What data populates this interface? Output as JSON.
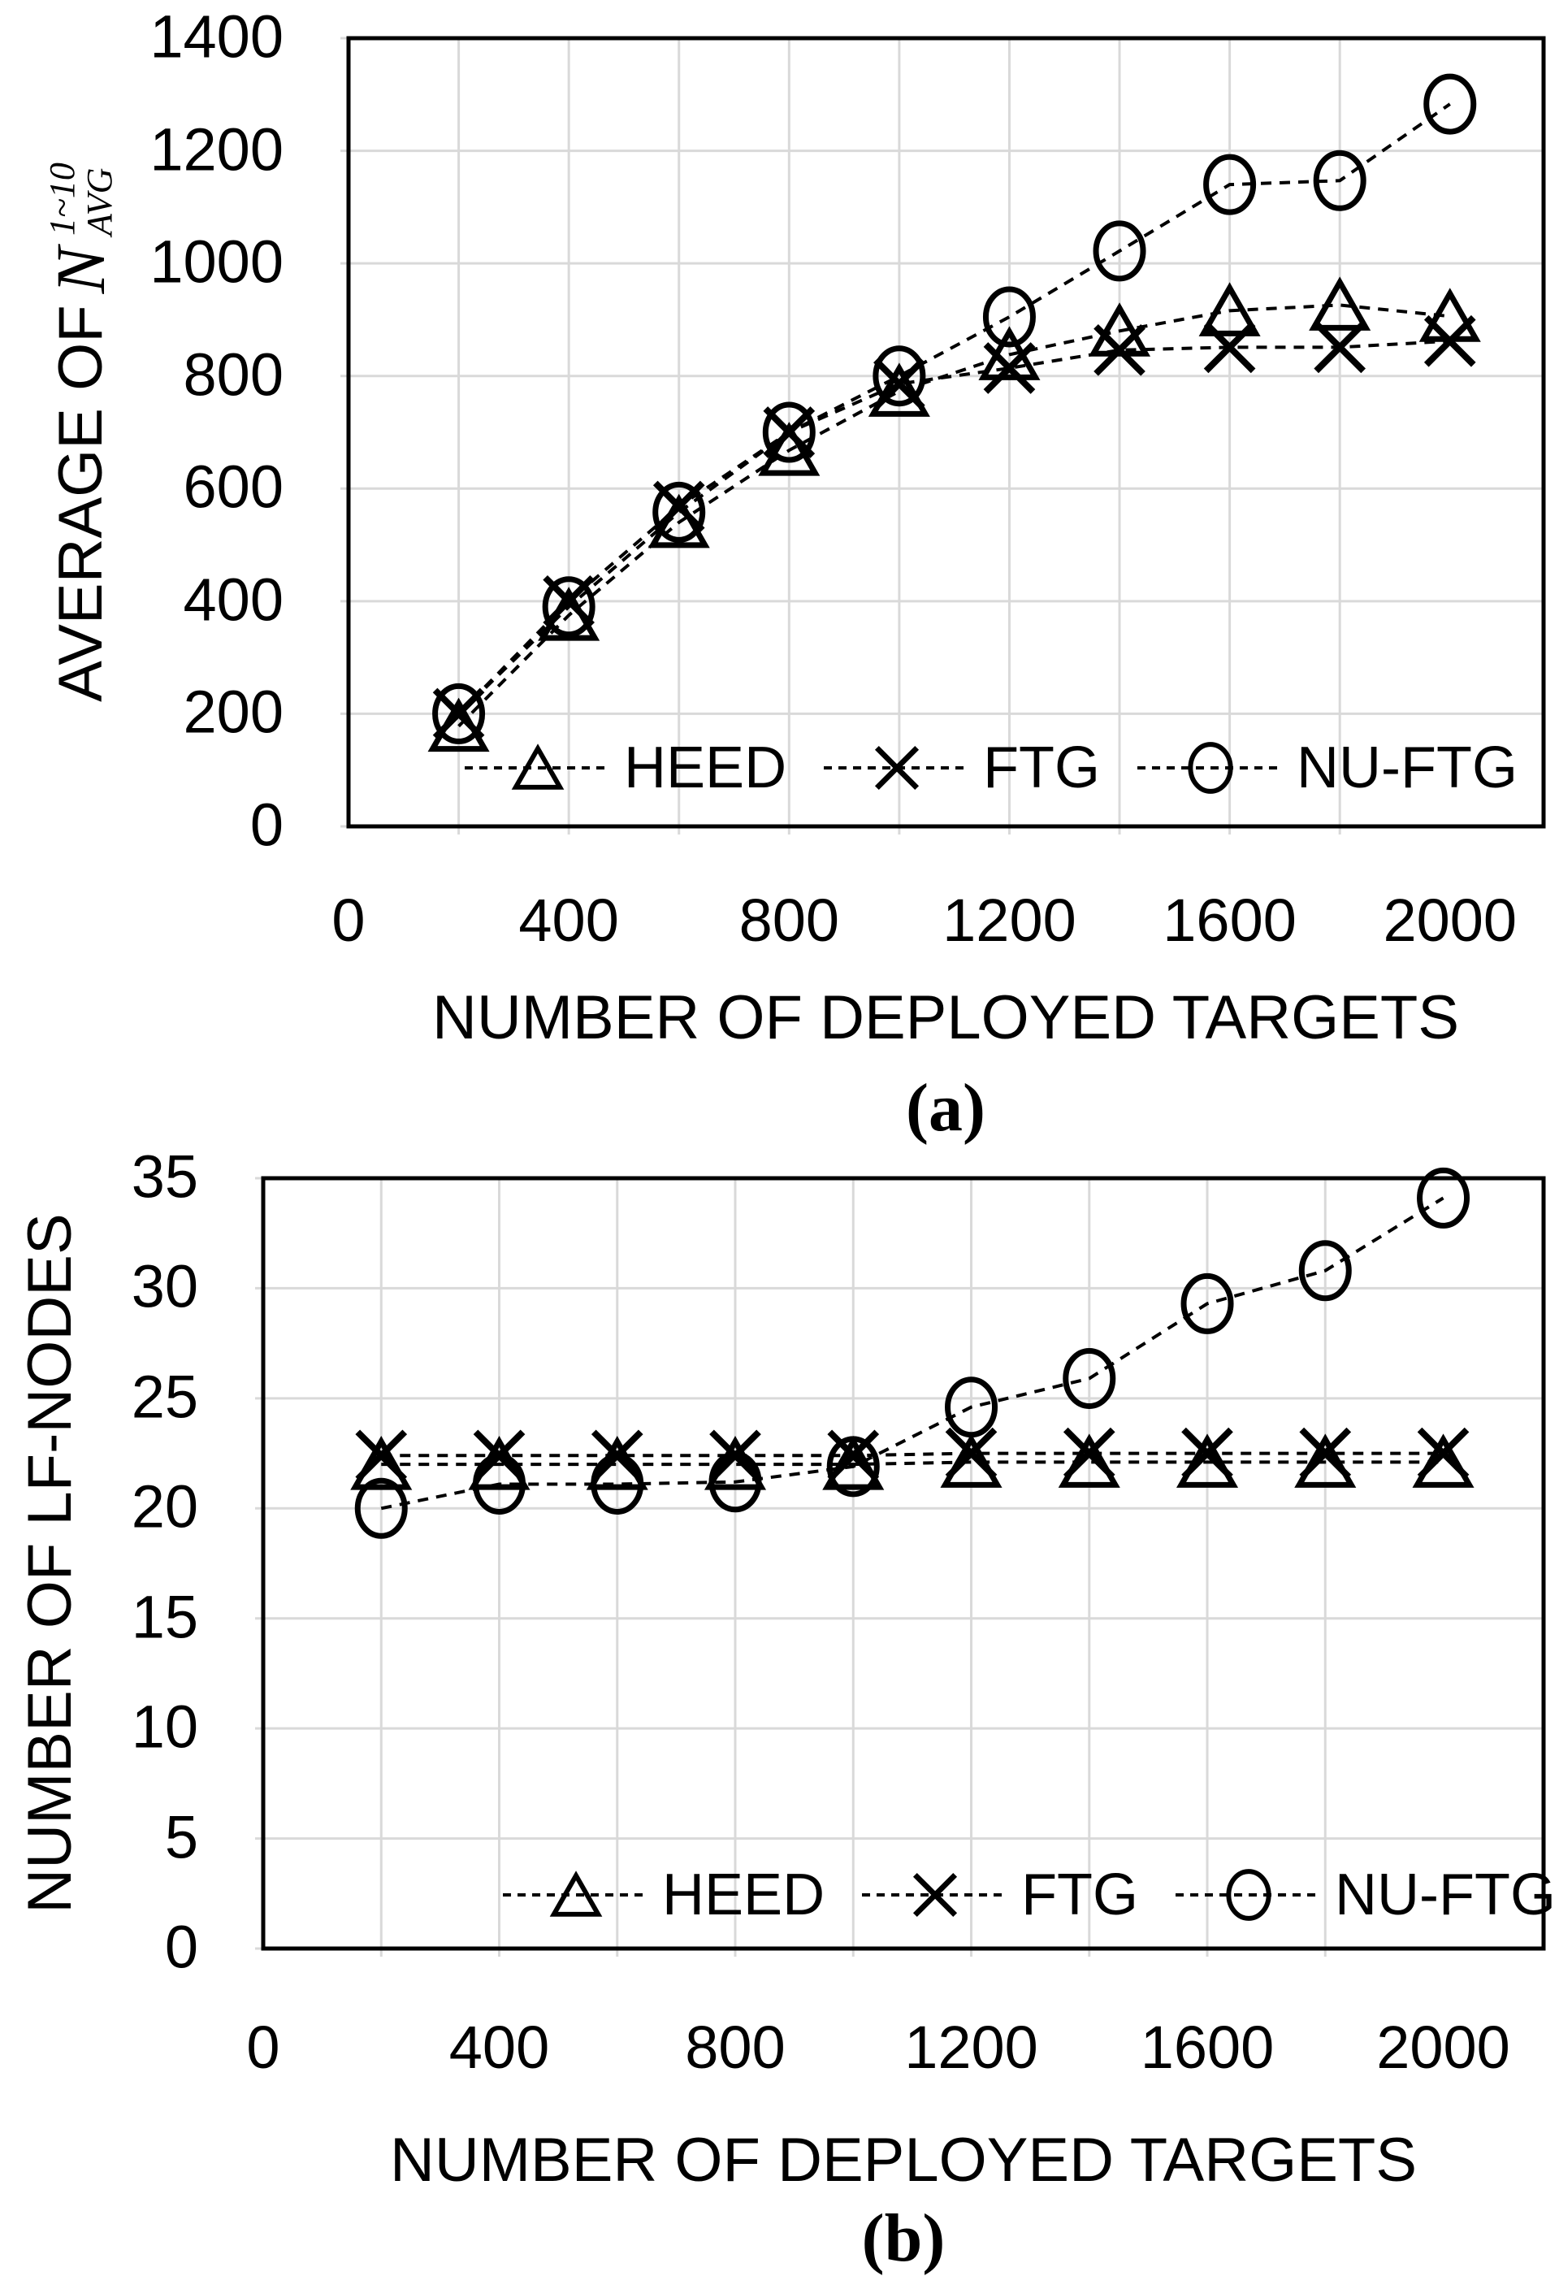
{
  "figure": {
    "background": "#ffffff"
  },
  "colors": {
    "series": "#000000",
    "grid": "#d9d9d9",
    "axis": "#000000",
    "text": "#000000"
  },
  "chart_data": [
    {
      "id": "a",
      "type": "line",
      "caption": "(a)",
      "xlabel": "NUMBER OF DEPLOYED TARGETS",
      "ylabel_prefix": "AVERAGE OF",
      "ylabel_math": {
        "base": "N",
        "sup": "1~10",
        "sub": "AVG"
      },
      "x": [
        200,
        400,
        600,
        800,
        1000,
        1200,
        1400,
        1600,
        1800,
        2000
      ],
      "xlim": [
        0,
        2170
      ],
      "xticks": [
        0,
        400,
        800,
        1200,
        1600,
        2000
      ],
      "x_gridstep": 200,
      "ylim": [
        0,
        1400
      ],
      "yticks": [
        0,
        200,
        400,
        600,
        800,
        1000,
        1200,
        1400
      ],
      "y_gridstep": 200,
      "grid": true,
      "legend_position": "inside-bottom",
      "series": [
        {
          "name": "HEED",
          "marker": "triangle",
          "values": [
            178,
            375,
            540,
            668,
            773,
            838,
            880,
            916,
            926,
            906
          ]
        },
        {
          "name": "FTG",
          "marker": "x",
          "values": [
            200,
            400,
            568,
            700,
            786,
            814,
            846,
            851,
            851,
            862
          ]
        },
        {
          "name": "NU-FTG",
          "marker": "circle",
          "values": [
            200,
            390,
            558,
            700,
            800,
            905,
            1022,
            1140,
            1147,
            1283
          ]
        }
      ]
    },
    {
      "id": "b",
      "type": "line",
      "caption": "(b)",
      "xlabel": "NUMBER OF DEPLOYED TARGETS",
      "ylabel": "NUMBER OF LF-NODES",
      "x": [
        200,
        400,
        600,
        800,
        1000,
        1200,
        1400,
        1600,
        1800,
        2000
      ],
      "xlim": [
        0,
        2170
      ],
      "xticks": [
        0,
        400,
        800,
        1200,
        1600,
        2000
      ],
      "x_gridstep": 200,
      "ylim": [
        0,
        35
      ],
      "yticks": [
        0,
        5,
        10,
        15,
        20,
        25,
        30,
        35
      ],
      "y_gridstep": 5,
      "grid": true,
      "legend_position": "inside-bottom",
      "series": [
        {
          "name": "HEED",
          "marker": "triangle",
          "values": [
            22.0,
            22.0,
            22.0,
            22.0,
            22.0,
            22.1,
            22.1,
            22.1,
            22.1,
            22.1
          ]
        },
        {
          "name": "FTG",
          "marker": "x",
          "values": [
            22.4,
            22.4,
            22.4,
            22.4,
            22.4,
            22.5,
            22.5,
            22.5,
            22.5,
            22.5
          ]
        },
        {
          "name": "NU-FTG",
          "marker": "circle",
          "values": [
            20.0,
            21.1,
            21.1,
            21.2,
            21.9,
            24.6,
            25.9,
            29.3,
            30.8,
            34.1
          ]
        }
      ]
    }
  ]
}
